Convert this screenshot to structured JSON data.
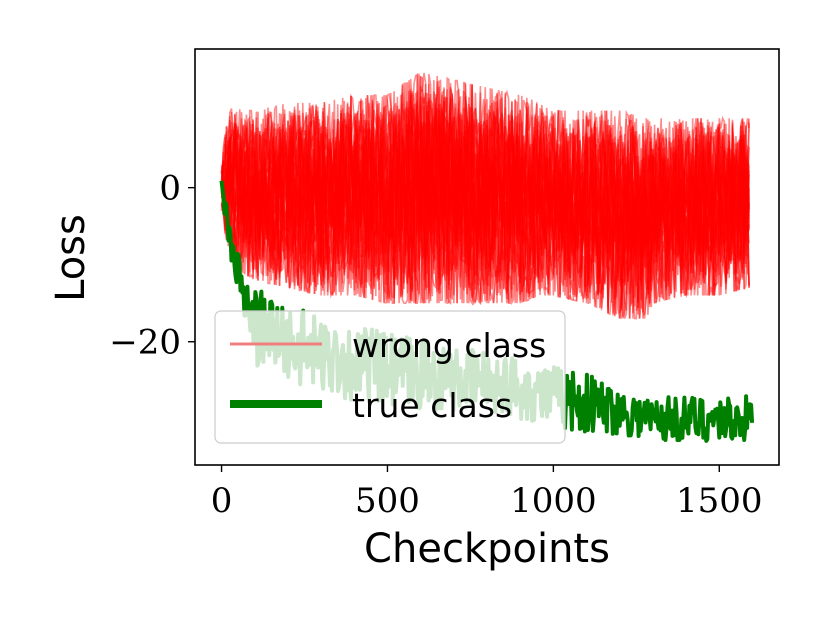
{
  "chart_data": {
    "type": "line",
    "xlabel": "Checkpoints",
    "ylabel": "Loss",
    "xlim": [
      -80,
      1680
    ],
    "ylim": [
      -36,
      18
    ],
    "xticks": [
      0,
      500,
      1000,
      1500
    ],
    "xtick_labels": [
      "0",
      "500",
      "1000",
      "1500"
    ],
    "yticks": [
      0,
      -20
    ],
    "ytick_labels": [
      "0",
      "−20"
    ],
    "grid": false,
    "legend_position": "lower-left",
    "series": [
      {
        "name": "wrong class",
        "color": "#ff0000",
        "style": "many overlapping thin translucent lines",
        "x": [
          0,
          10,
          30,
          60,
          100,
          200,
          300,
          400,
          500,
          600,
          700,
          800,
          900,
          960,
          1000,
          1100,
          1200,
          1280,
          1300,
          1400,
          1500,
          1590
        ],
        "upper": [
          3,
          8,
          11,
          10,
          10,
          11,
          11,
          12,
          12,
          15,
          14,
          13,
          12,
          11,
          10,
          10,
          10,
          9,
          9,
          9,
          9,
          9
        ],
        "lower": [
          -3,
          -6,
          -9,
          -11,
          -12,
          -13,
          -14,
          -14,
          -15,
          -15,
          -15,
          -15,
          -15,
          -14,
          -14,
          -15,
          -17,
          -17,
          -15,
          -14,
          -14,
          -13
        ]
      },
      {
        "name": "true class",
        "color": "#008000",
        "style": "thick noisy line",
        "x": [
          0,
          20,
          40,
          60,
          80,
          100,
          150,
          200,
          250,
          300,
          350,
          400,
          450,
          500,
          600,
          700,
          800,
          900,
          1000,
          1100,
          1200,
          1300,
          1400,
          1500,
          1600
        ],
        "values": [
          0,
          -5,
          -10,
          -13,
          -16,
          -18,
          -19,
          -20,
          -21,
          -22,
          -22,
          -23,
          -23,
          -24,
          -24,
          -25,
          -25,
          -26,
          -27,
          -28,
          -29,
          -30,
          -30,
          -30,
          -30
        ],
        "spread": [
          1,
          2,
          3,
          4,
          4,
          5,
          5,
          5,
          5,
          5,
          5,
          5,
          5,
          5,
          5,
          4,
          4,
          4,
          4,
          4,
          3,
          3,
          3,
          3,
          3
        ]
      }
    ]
  }
}
